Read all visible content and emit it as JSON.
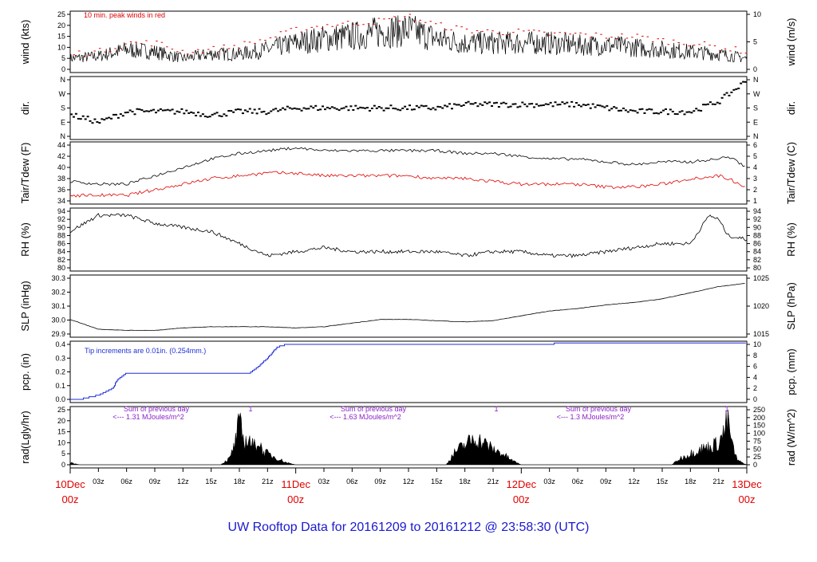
{
  "title": "UW Rooftop Data for 20161209  to  20161212 @ 23:58:30  (UTC)",
  "colors": {
    "trace": "#000000",
    "red": "#e00000",
    "blue": "#1f2fd6",
    "purple": "#8b1fc9",
    "title": "#1a1ad0"
  },
  "time_axis": {
    "hours": [
      "03z",
      "06z",
      "09z",
      "12z",
      "15z",
      "18z",
      "21z",
      "03z",
      "06z",
      "09z",
      "12z",
      "15z",
      "18z",
      "21z",
      "03z",
      "06z",
      "09z",
      "12z",
      "15z",
      "18z",
      "21z"
    ],
    "days": [
      {
        "date": "10Dec",
        "time": "00z"
      },
      {
        "date": "11Dec",
        "time": "00z"
      },
      {
        "date": "12Dec",
        "time": "00z"
      },
      {
        "date": "13Dec",
        "time": "00z"
      }
    ]
  },
  "panels": {
    "wind": {
      "left_label": "wind (kts)",
      "right_label": "wind (m/s)",
      "left_ticks": [
        "0",
        "5",
        "10",
        "15",
        "20",
        "25"
      ],
      "right_ticks": [
        "0",
        "5",
        "10"
      ],
      "note": "10 min. peak winds in red"
    },
    "dir": {
      "left_label": "dir.",
      "right_label": "dir.",
      "left_ticks": [
        "N",
        "E",
        "S",
        "W",
        "N"
      ],
      "right_ticks": [
        "N",
        "E",
        "S",
        "W",
        "N"
      ]
    },
    "temp": {
      "left_label": "Tair/Tdew (F)",
      "right_label": "Tair/Tdew (C)",
      "left_ticks": [
        "34",
        "36",
        "38",
        "40",
        "42",
        "44"
      ],
      "right_ticks": [
        "1",
        "2",
        "3",
        "4",
        "5",
        "6"
      ]
    },
    "rh": {
      "left_label": "RH (%)",
      "right_label": "RH (%)",
      "left_ticks": [
        "80",
        "82",
        "84",
        "86",
        "88",
        "90",
        "92",
        "94"
      ],
      "right_ticks": [
        "80",
        "82",
        "84",
        "86",
        "88",
        "90",
        "92",
        "94"
      ]
    },
    "slp": {
      "left_label": "SLP (inHg)",
      "right_label": "SLP (hPa)",
      "left_ticks": [
        "29.9",
        "30.0",
        "30.1",
        "30.2",
        "30.3"
      ],
      "right_ticks": [
        "1015",
        "1020",
        "1025"
      ]
    },
    "pcp": {
      "left_label": "pcp. (in)",
      "right_label": "pcp. (mm)",
      "left_ticks": [
        "0.0",
        "0.1",
        "0.2",
        "0.3",
        "0.4"
      ],
      "right_ticks": [
        "0",
        "2",
        "4",
        "6",
        "8",
        "10"
      ],
      "note": "Tip increments are 0.01in. (0.254mm.)"
    },
    "rad": {
      "left_label": "rad(Lgly/hr)",
      "right_label": "rad (W/m^2)",
      "left_ticks": [
        "0",
        "5",
        "10",
        "15",
        "20",
        "25"
      ],
      "right_ticks": [
        "0",
        "25",
        "50",
        "75",
        "100",
        "150",
        "200",
        "250"
      ],
      "notes": [
        {
          "line1": "Sum of previous day",
          "line2": "<--- 1.31 MJoules/m^2"
        },
        {
          "line1": "Sum of previous day",
          "line2": "<--- 1.63 MJoules/m^2"
        },
        {
          "line1": "Sum of previous day",
          "line2": "<--- 1.3 MJoules/m^2"
        }
      ],
      "noon_marks": [
        "1",
        "1",
        "1"
      ]
    }
  },
  "chart_data": {
    "type": "line",
    "x_unit": "hours since 2016-12-10 00z",
    "x_range": [
      0,
      72
    ],
    "wind_kts": {
      "x": [
        0,
        3,
        6,
        9,
        12,
        15,
        18,
        21,
        24,
        27,
        30,
        33,
        36,
        39,
        42,
        45,
        48,
        51,
        54,
        57,
        60,
        63,
        66,
        69,
        72
      ],
      "mean": [
        5,
        6,
        9,
        8,
        5,
        7,
        7,
        9,
        12,
        14,
        15,
        17,
        18,
        14,
        12,
        12,
        12,
        12,
        11,
        11,
        10,
        9,
        8,
        7,
        5
      ],
      "peak": [
        7,
        8,
        12,
        12,
        8,
        9,
        11,
        14,
        18,
        20,
        21,
        22,
        24,
        20,
        18,
        17,
        17,
        16,
        16,
        15,
        15,
        13,
        12,
        10,
        8
      ],
      "ylim": [
        0,
        25
      ]
    },
    "direction": {
      "x": [
        0,
        3,
        6,
        9,
        12,
        15,
        18,
        21,
        24,
        27,
        30,
        33,
        36,
        39,
        42,
        45,
        48,
        51,
        54,
        57,
        60,
        63,
        66,
        69,
        70,
        72
      ],
      "values": [
        "SE",
        "E",
        "SSE",
        "SSE",
        "SSE",
        "SE",
        "SSE",
        "SSE",
        "S",
        "S",
        "S",
        "S",
        "S",
        "S",
        "SSW",
        "SSW",
        "SSW",
        "SSW",
        "SSW",
        "S",
        "SSE",
        "SSE",
        "SSE",
        "SW",
        "W",
        "N"
      ]
    },
    "temperature_f": {
      "x": [
        0,
        3,
        6,
        9,
        12,
        15,
        18,
        21,
        24,
        27,
        30,
        33,
        36,
        39,
        42,
        45,
        48,
        51,
        54,
        57,
        60,
        63,
        66,
        69,
        70,
        72
      ],
      "tair": [
        37.5,
        37,
        37,
        38.5,
        40,
        41.5,
        42.5,
        43,
        43.5,
        43,
        43,
        43,
        43,
        43,
        42.5,
        42.5,
        42,
        41.5,
        41.5,
        41,
        40.5,
        41,
        41,
        41.5,
        42,
        40
      ],
      "tdew": [
        35,
        35,
        35,
        36,
        37,
        38,
        38.5,
        39,
        39,
        38.5,
        38.5,
        38.5,
        38.5,
        38,
        38,
        37.5,
        37,
        37,
        37,
        36.5,
        36.5,
        37,
        38,
        38.5,
        38,
        36.5
      ],
      "ylim": [
        34,
        44
      ]
    },
    "rh_pct": {
      "x": [
        0,
        3,
        6,
        9,
        12,
        15,
        18,
        21,
        24,
        27,
        30,
        33,
        36,
        39,
        42,
        45,
        48,
        51,
        54,
        57,
        60,
        63,
        66,
        68,
        69,
        70,
        72
      ],
      "values": [
        89,
        93,
        93,
        91,
        90,
        89,
        86,
        83,
        84,
        85,
        84,
        84,
        84,
        84,
        83,
        84,
        84,
        83,
        83,
        84,
        85,
        86,
        86,
        93,
        92,
        88,
        87
      ],
      "ylim": [
        80,
        94
      ]
    },
    "slp_inhg": {
      "x": [
        0,
        3,
        6,
        9,
        12,
        15,
        18,
        21,
        24,
        27,
        30,
        33,
        36,
        39,
        42,
        45,
        48,
        51,
        54,
        57,
        60,
        63,
        66,
        69,
        72
      ],
      "values": [
        29.98,
        29.9,
        29.89,
        29.89,
        29.91,
        29.92,
        29.92,
        29.92,
        29.91,
        29.92,
        29.95,
        29.98,
        29.98,
        29.97,
        29.96,
        29.97,
        30.01,
        30.05,
        30.07,
        30.1,
        30.12,
        30.15,
        30.2,
        30.25,
        30.28
      ],
      "ylim": [
        29.86,
        30.32
      ]
    },
    "precip_in": {
      "x": [
        0,
        1,
        3,
        4.5,
        5,
        5.5,
        6,
        19,
        19.7,
        21,
        22,
        23,
        24,
        29,
        44,
        59,
        69,
        72
      ],
      "values": [
        0,
        0,
        0.03,
        0.08,
        0.14,
        0.17,
        0.19,
        0.19,
        0.22,
        0.3,
        0.38,
        0.4,
        0.4,
        0.4,
        0.4,
        0.41,
        0.41,
        0.41
      ],
      "ylim": [
        0,
        0.4
      ]
    },
    "radiation_lgly_hr": {
      "x": [
        0,
        1,
        16,
        17,
        17.5,
        18,
        18.5,
        19,
        19.5,
        20,
        20.5,
        21,
        22,
        23,
        24,
        40,
        41,
        42,
        43,
        44,
        45,
        46,
        47,
        48,
        64,
        65,
        66,
        67,
        68,
        69,
        69.5,
        70,
        70.5,
        71,
        72
      ],
      "values": [
        1,
        0,
        0,
        3,
        9,
        19,
        10,
        12,
        8,
        11,
        6,
        5,
        3,
        1,
        0,
        0,
        6,
        9,
        12,
        10,
        7,
        5,
        2,
        0,
        0,
        3,
        5,
        7,
        8,
        10,
        14,
        21,
        8,
        2,
        0
      ],
      "ylim": [
        0,
        25
      ]
    }
  }
}
